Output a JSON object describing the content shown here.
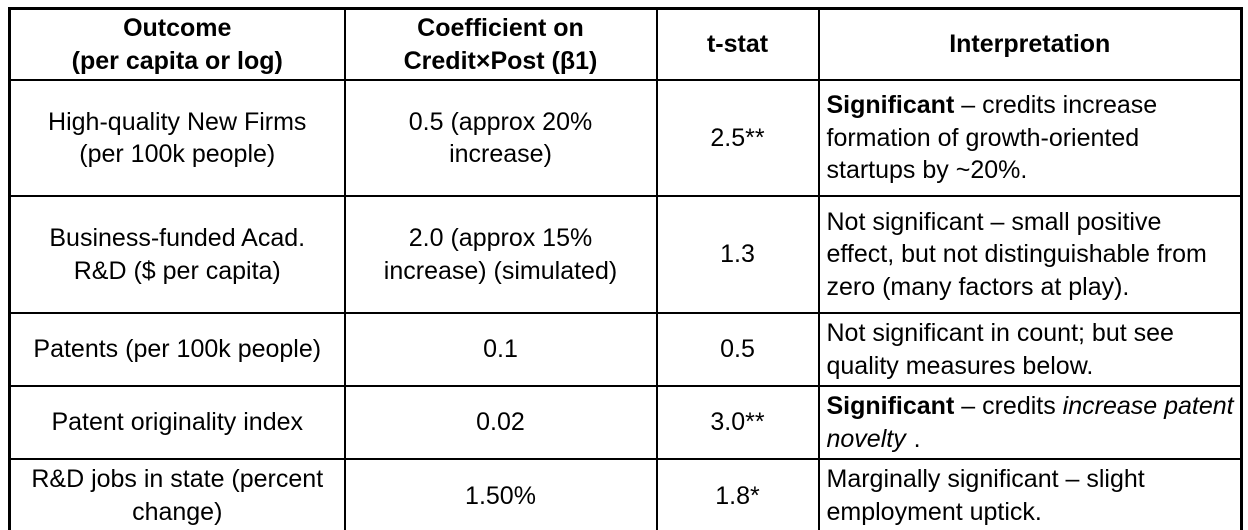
{
  "colors": {
    "border": "#000000",
    "text": "#000000",
    "background": "#ffffff"
  },
  "table": {
    "columns": [
      {
        "label": "Outcome\n(per capita or log)"
      },
      {
        "label": "Coefficient on\nCredit×Post (β1)"
      },
      {
        "label": "t-stat"
      },
      {
        "label": "Interpretation"
      }
    ],
    "rows": [
      {
        "outcome": "High-quality New Firms\n(per 100k people)",
        "coefficient": "0.5 (approx 20%\nincrease)",
        "t_stat": "2.5**",
        "interpretation": [
          {
            "t": "Significant",
            "b": true
          },
          {
            "t": " – credits increase formation of growth-oriented startups by ~20%."
          }
        ]
      },
      {
        "outcome": "Business-funded Acad.\nR&D ($ per capita)",
        "coefficient": "2.0 (approx 15%\nincrease) (simulated)",
        "t_stat": "1.3",
        "interpretation": [
          {
            "t": "Not significant – small positive effect, but not distinguishable from zero (many factors at play)."
          }
        ]
      },
      {
        "outcome": "Patents (per 100k people)",
        "coefficient": "0.1",
        "t_stat": "0.5",
        "interpretation": [
          {
            "t": "Not significant in count; but see quality measures below."
          }
        ]
      },
      {
        "outcome": "Patent originality index",
        "coefficient": "0.02",
        "t_stat": "3.0**",
        "interpretation": [
          {
            "t": "Significant",
            "b": true
          },
          {
            "t": " – credits "
          },
          {
            "t": "increase patent novelty",
            "i": true
          },
          {
            "t": " ."
          }
        ]
      },
      {
        "outcome": "R&D jobs in state (percent\nchange)",
        "coefficient": "1.50%",
        "t_stat": "1.8*",
        "interpretation": [
          {
            "t": "Marginally significant – slight employment uptick."
          }
        ]
      }
    ]
  }
}
